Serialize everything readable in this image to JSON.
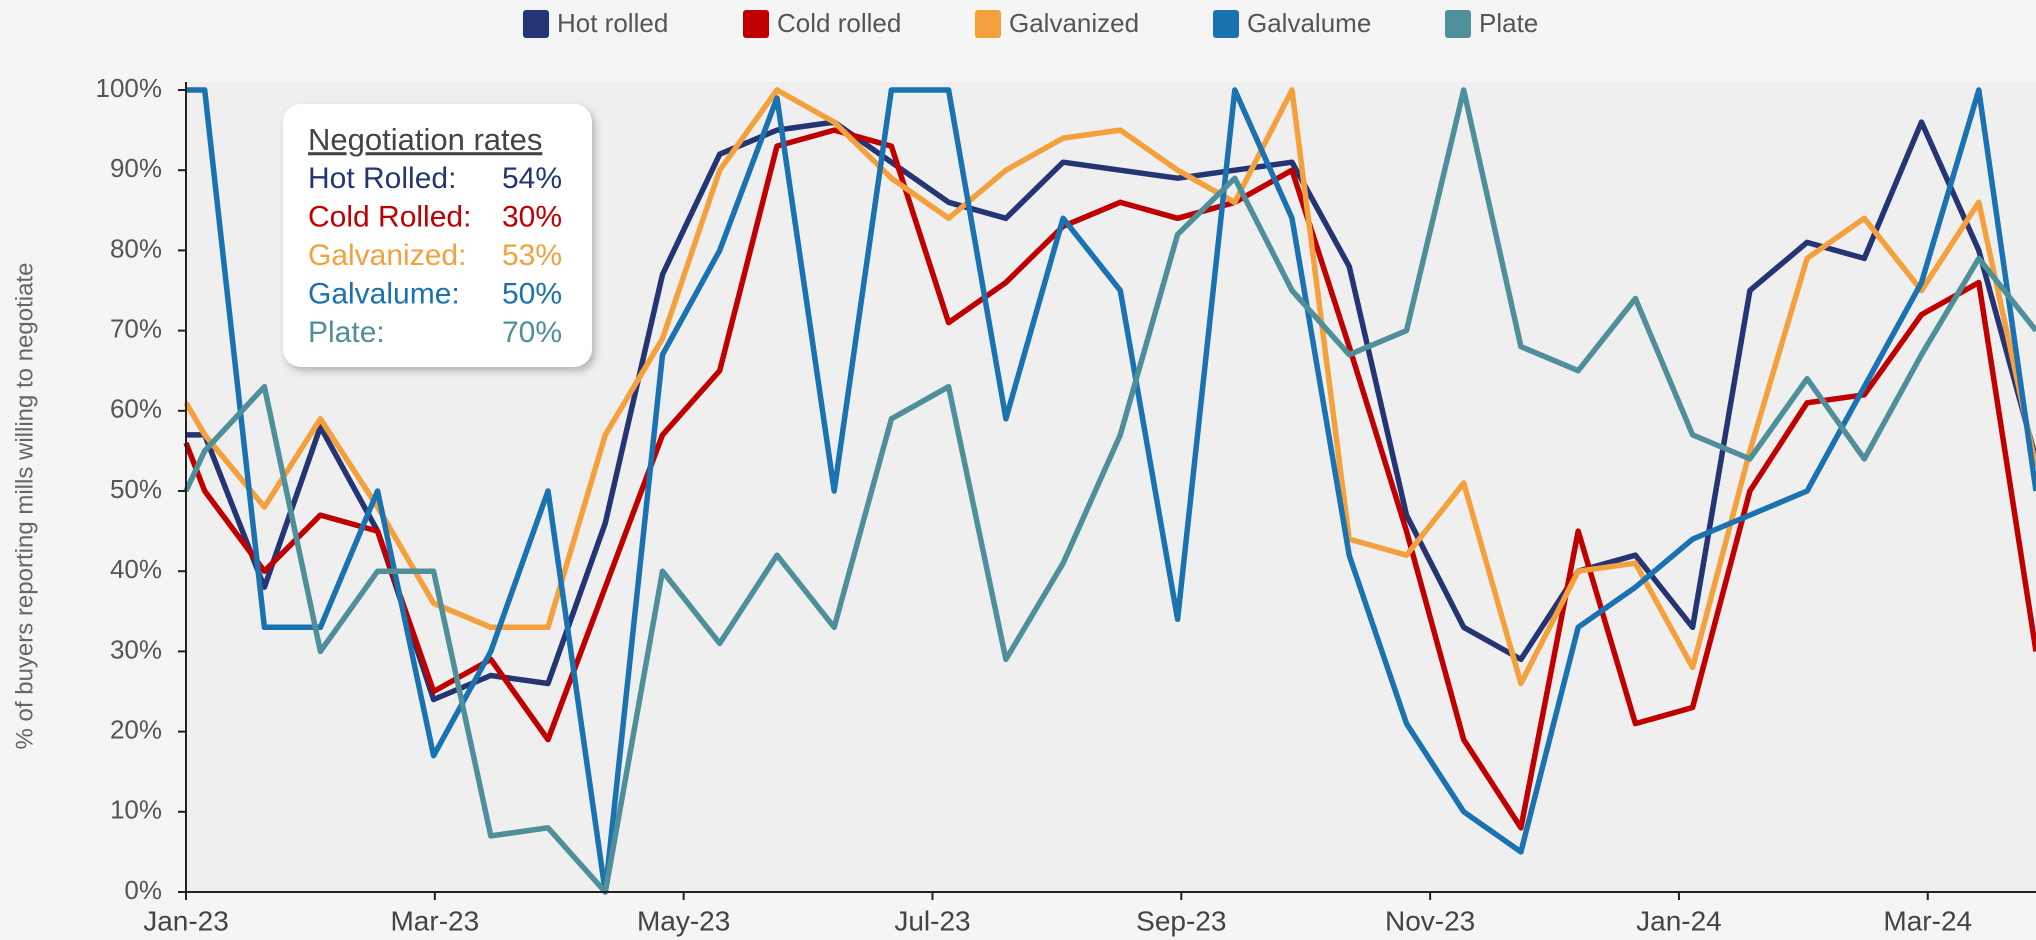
{
  "chart_data": {
    "type": "line",
    "y_label": "% of buyers reporting mills willing to negotiate",
    "x": [
      0,
      0.15,
      0.63,
      1.08,
      1.54,
      1.99,
      2.45,
      2.91,
      3.37,
      3.83,
      4.29,
      4.75,
      5.21,
      5.67,
      6.13,
      6.59,
      7.05,
      7.51,
      7.97,
      8.43,
      8.89,
      9.35,
      9.81,
      10.27,
      10.73,
      11.19,
      11.65,
      12.11,
      12.57,
      13.03,
      13.49,
      13.95,
      14.41,
      14.87
    ],
    "xlim": [
      0,
      14.87
    ],
    "xticks": [
      {
        "value": 0,
        "label": "Jan-23"
      },
      {
        "value": 2,
        "label": "Mar-23"
      },
      {
        "value": 4,
        "label": "May-23"
      },
      {
        "value": 6,
        "label": "Jul-23"
      },
      {
        "value": 8,
        "label": "Sep-23"
      },
      {
        "value": 10,
        "label": "Nov-23"
      },
      {
        "value": 12,
        "label": "Jan-24"
      },
      {
        "value": 14,
        "label": "Mar-24"
      }
    ],
    "ylim": [
      0,
      100
    ],
    "yticks": [
      {
        "value": 0,
        "label": "0%"
      },
      {
        "value": 10,
        "label": "10%"
      },
      {
        "value": 20,
        "label": "20%"
      },
      {
        "value": 30,
        "label": "30%"
      },
      {
        "value": 40,
        "label": "40%"
      },
      {
        "value": 50,
        "label": "50%"
      },
      {
        "value": 60,
        "label": "60%"
      },
      {
        "value": 70,
        "label": "70%"
      },
      {
        "value": 80,
        "label": "80%"
      },
      {
        "value": 90,
        "label": "90%"
      },
      {
        "value": 100,
        "label": "100%"
      }
    ],
    "grid": false,
    "legend": "top",
    "series": [
      {
        "name": "Hot rolled",
        "color": "#253473",
        "values": [
          57,
          57,
          38,
          58,
          45,
          24,
          27,
          26,
          46,
          77,
          92,
          95,
          96,
          91,
          86,
          84,
          91,
          90,
          89,
          90,
          91,
          78,
          47,
          33,
          29,
          40,
          42,
          33,
          75,
          81,
          79,
          96,
          80,
          54
        ]
      },
      {
        "name": "Cold rolled",
        "color": "#c00000",
        "values": [
          56,
          50,
          40,
          47,
          45,
          25,
          29,
          19,
          38,
          57,
          65,
          93,
          95,
          93,
          71,
          76,
          83,
          86,
          84,
          86,
          90,
          68,
          45,
          19,
          8,
          45,
          21,
          23,
          50,
          61,
          62,
          72,
          76,
          30
        ]
      },
      {
        "name": "Galvanized",
        "color": "#f4a03c",
        "values": [
          61,
          57,
          48,
          59,
          48,
          36,
          33,
          33,
          57,
          69,
          90,
          100,
          96,
          89,
          84,
          90,
          94,
          95,
          90,
          86,
          100,
          44,
          42,
          51,
          26,
          40,
          41,
          28,
          55,
          79,
          84,
          75,
          86,
          53
        ]
      },
      {
        "name": "Galvalume",
        "color": "#1a72b0",
        "values": [
          100,
          100,
          33,
          33,
          50,
          17,
          30,
          50,
          0,
          67,
          80,
          99,
          50,
          100,
          100,
          59,
          84,
          75,
          34,
          100,
          84,
          42,
          21,
          10,
          5,
          33,
          38,
          44,
          47,
          50,
          63,
          76,
          100,
          50
        ]
      },
      {
        "name": "Plate",
        "color": "#4f8f9a",
        "values": [
          50,
          55,
          63,
          30,
          40,
          40,
          7,
          8,
          0,
          40,
          31,
          42,
          33,
          59,
          63,
          29,
          41,
          57,
          82,
          89,
          75,
          67,
          70,
          100,
          68,
          65,
          74,
          57,
          54,
          64,
          54,
          67,
          79,
          70
        ]
      }
    ],
    "summary": {
      "title": "Negotiation rates",
      "labels": [
        "Hot Rolled:",
        "Cold Rolled:",
        "Galvanized:",
        "Galvalume:",
        "Plate:"
      ],
      "rates": [
        "54%",
        "30%",
        "53%",
        "50%",
        "70%"
      ]
    }
  }
}
